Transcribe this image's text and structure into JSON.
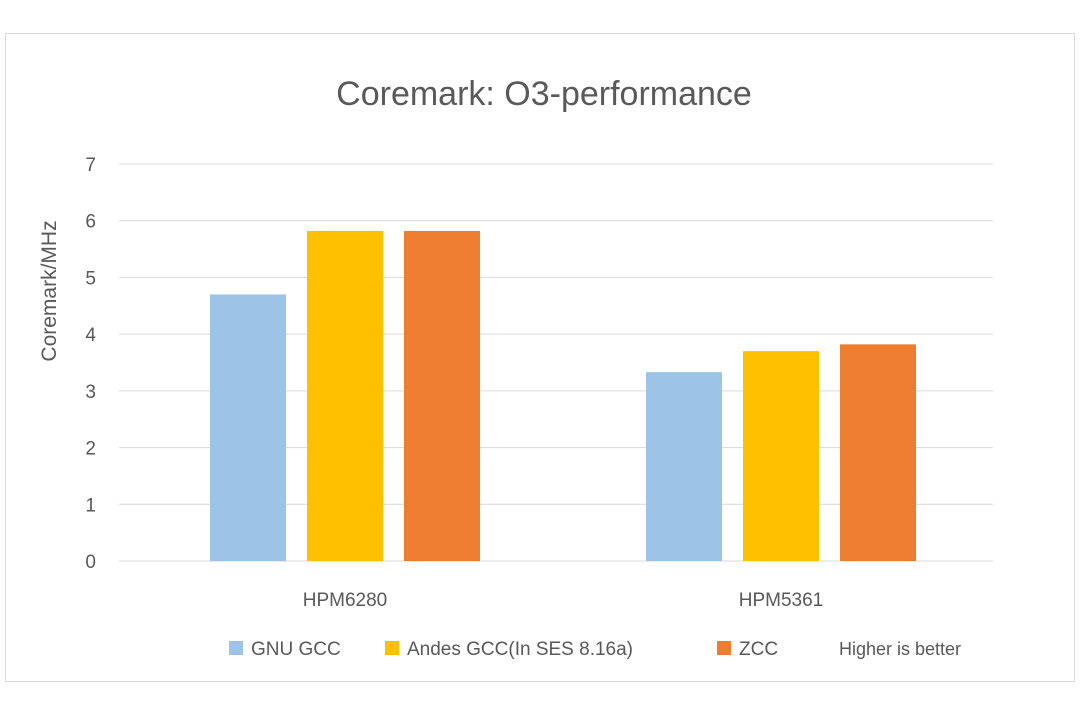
{
  "chart_data": {
    "type": "bar",
    "title": "Coremark: O3-performance",
    "ylabel": "Coremark/MHz",
    "xlabel": "",
    "ylim": [
      0,
      7
    ],
    "yticks": [
      0,
      1,
      2,
      3,
      4,
      5,
      6,
      7
    ],
    "grid": true,
    "legend_position": "bottom",
    "categories": [
      "HPM6280",
      "HPM5361"
    ],
    "series": [
      {
        "name": "GNU GCC",
        "values": [
          4.7,
          3.33
        ],
        "color": "#9dc3e6"
      },
      {
        "name": "Andes GCC(In SES 8.16a)",
        "values": [
          5.82,
          3.7
        ],
        "color": "#ffc000"
      },
      {
        "name": "ZCC",
        "values": [
          5.82,
          3.82
        ],
        "color": "#ed7d31"
      }
    ],
    "annotation": "Higher is better"
  }
}
